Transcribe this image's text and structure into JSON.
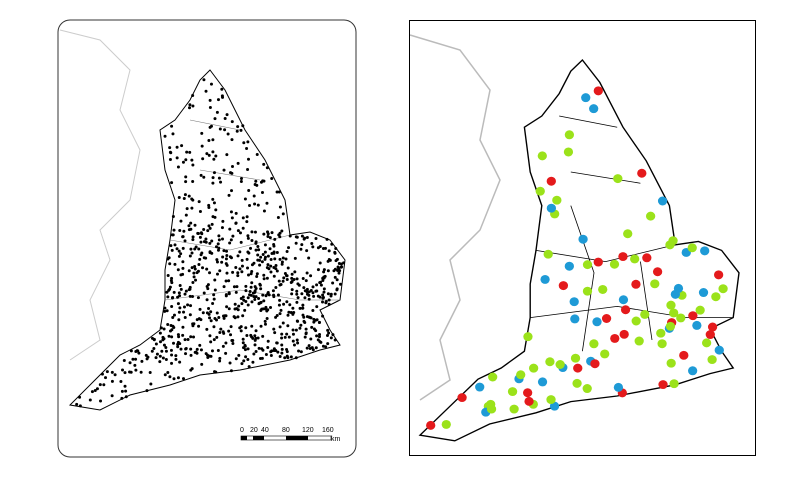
{
  "scale_bar": {
    "labels": [
      "0",
      "20",
      "40",
      "80",
      "120",
      "160"
    ],
    "unit": "km"
  }
}
